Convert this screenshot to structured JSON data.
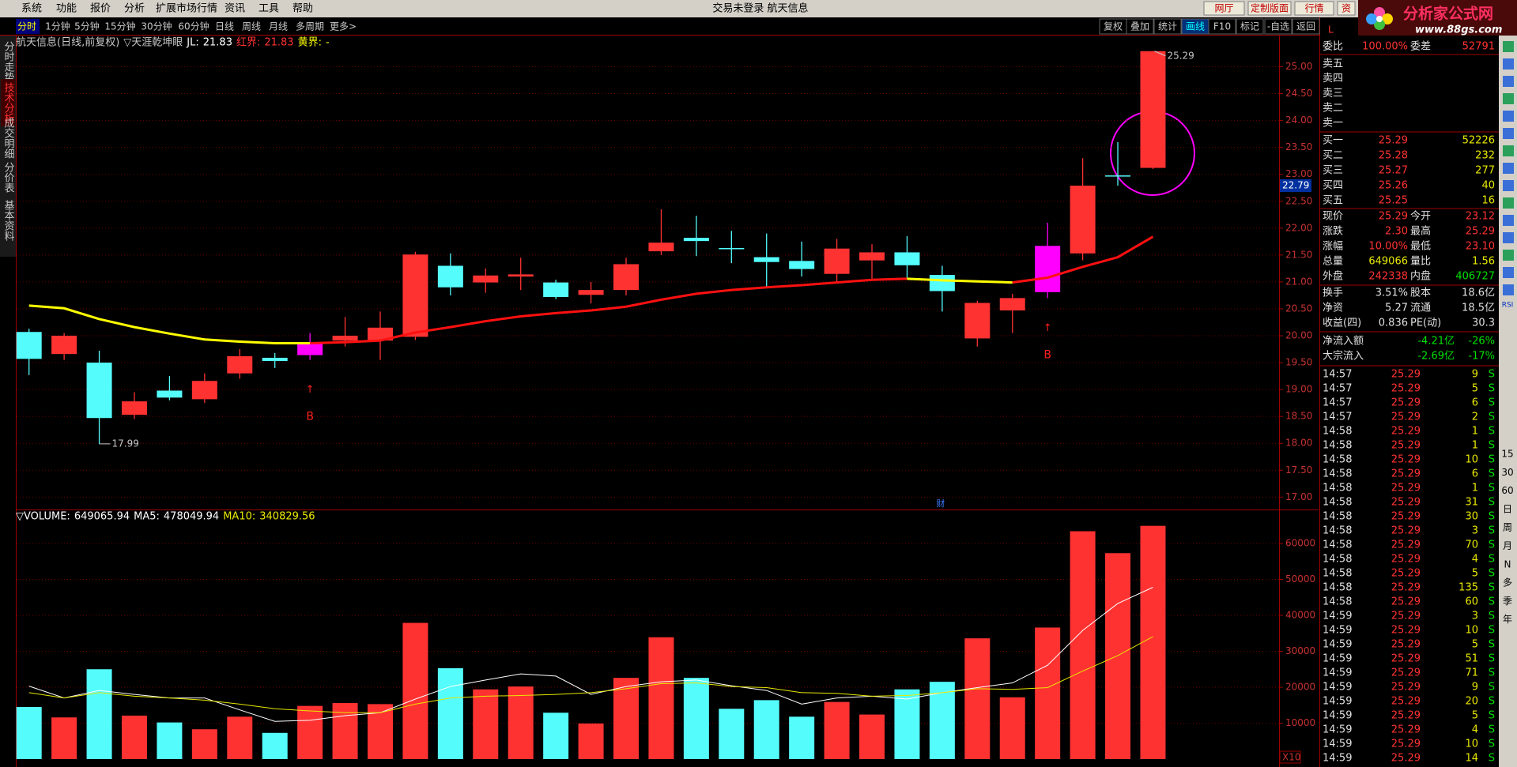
{
  "menu": [
    "系统",
    "功能",
    "报价",
    "分析",
    "扩展市场行情",
    "资讯",
    "工具",
    "帮助"
  ],
  "title": "交易未登录 航天信息",
  "top_buttons": [
    "网厅",
    "定制版面",
    "行情",
    "资"
  ],
  "logo": {
    "name": "分析家公式网",
    "url": "www.88gs.com"
  },
  "periods": [
    "分时",
    "1分钟",
    "5分钟",
    "15分钟",
    "30分钟",
    "60分钟",
    "日线",
    "周线",
    "月线",
    "多周期",
    "更多>"
  ],
  "tools": [
    "复权",
    "叠加",
    "统计",
    "画线",
    "F10",
    "标记",
    "-自选",
    "返回"
  ],
  "side_tabs": [
    "分时走势",
    "技术分析",
    "成交明细",
    "分价表",
    "基本资料"
  ],
  "price_chart": {
    "name": "航天信息(日线,前复权)",
    "indicator": "▽天涯乾坤眼",
    "jl": {
      "label": "JL:",
      "value": 21.83
    },
    "red": {
      "label": "红界:",
      "value": 21.83
    },
    "yellow": {
      "label": "黄界:",
      "value": "-"
    },
    "open": [
      20.07,
      19.66,
      19.5,
      18.53,
      18.98,
      18.82,
      19.3,
      19.59,
      19.64,
      19.91,
      19.91,
      19.98,
      21.3,
      20.99,
      21.1,
      20.99,
      20.76,
      20.85,
      21.57,
      21.82,
      21.63,
      21.46,
      21.39,
      21.15,
      21.4,
      21.55,
      21.13,
      19.95,
      20.47,
      20.81,
      21.53,
      22.98,
      23.12
    ],
    "high": [
      20.13,
      20.05,
      19.72,
      18.95,
      19.25,
      19.3,
      19.75,
      19.68,
      20.05,
      20.35,
      20.45,
      21.56,
      21.53,
      21.25,
      21.45,
      21.04,
      21.0,
      21.45,
      22.35,
      22.23,
      21.95,
      21.9,
      21.75,
      21.8,
      21.7,
      21.85,
      21.3,
      20.65,
      20.78,
      22.1,
      23.3,
      23.6,
      25.29
    ],
    "low": [
      19.27,
      19.55,
      17.99,
      18.45,
      18.8,
      18.75,
      19.2,
      19.4,
      19.55,
      19.8,
      19.55,
      19.92,
      20.75,
      20.8,
      20.85,
      20.68,
      20.6,
      20.75,
      21.5,
      21.48,
      21.35,
      20.9,
      21.1,
      21.0,
      21.05,
      21.05,
      20.45,
      19.8,
      20.05,
      20.7,
      21.4,
      22.79,
      23.1
    ],
    "close": [
      19.57,
      20.0,
      18.47,
      18.78,
      18.85,
      19.16,
      19.62,
      19.53,
      19.86,
      20.0,
      20.15,
      21.51,
      20.9,
      21.12,
      21.14,
      20.72,
      20.85,
      21.33,
      21.73,
      21.76,
      21.62,
      21.37,
      21.24,
      21.62,
      21.55,
      21.31,
      20.83,
      20.61,
      20.7,
      21.67,
      22.79,
      22.98,
      25.29
    ],
    "colors": [
      "#54fcfc",
      "#ff3232",
      "#54fcfc",
      "#ff3232",
      "#54fcfc",
      "#ff3232",
      "#ff3232",
      "#54fcfc",
      "#ff00ff",
      "#ff3232",
      "#ff3232",
      "#ff3232",
      "#54fcfc",
      "#ff3232",
      "#ff3232",
      "#54fcfc",
      "#ff3232",
      "#ff3232",
      "#ff3232",
      "#54fcfc",
      "#54fcfc",
      "#54fcfc",
      "#54fcfc",
      "#ff3232",
      "#ff3232",
      "#54fcfc",
      "#54fcfc",
      "#ff3232",
      "#ff3232",
      "#ff00ff",
      "#ff3232",
      "#54fcfc",
      "#ff3232"
    ],
    "ma": [
      20.56,
      20.51,
      20.31,
      20.16,
      20.04,
      19.93,
      19.89,
      19.86,
      19.86,
      19.88,
      19.91,
      20.06,
      20.16,
      20.27,
      20.36,
      20.42,
      20.47,
      20.54,
      20.67,
      20.78,
      20.85,
      20.9,
      20.94,
      20.99,
      21.04,
      21.06,
      21.03,
      21.01,
      20.99,
      21.08,
      21.28,
      21.46,
      21.84
    ],
    "ma_colors": [
      "#ffff00",
      "#ffff00",
      "#ffff00",
      "#ffff00",
      "#ffff00",
      "#ffff00",
      "#ffff00",
      "#ffff00",
      "#ffff00",
      "#ff1010",
      "#ff1010",
      "#ff1010",
      "#ff1010",
      "#ff1010",
      "#ff1010",
      "#ff1010",
      "#ff1010",
      "#ff1010",
      "#ff1010",
      "#ff1010",
      "#ff1010",
      "#ff1010",
      "#ff1010",
      "#ff1010",
      "#ff1010",
      "#ff1010",
      "#ffff00",
      "#ffff00",
      "#ffff00",
      "#ff1010",
      "#ff1010",
      "#ff1010",
      "#ff1010"
    ],
    "signals": [
      null,
      null,
      null,
      null,
      null,
      null,
      null,
      null,
      "B",
      null,
      null,
      null,
      null,
      null,
      null,
      null,
      null,
      null,
      null,
      null,
      null,
      null,
      null,
      null,
      null,
      null,
      null,
      null,
      null,
      "B",
      null,
      null,
      null
    ],
    "events": [
      null,
      null,
      null,
      null,
      null,
      null,
      null,
      null,
      null,
      null,
      null,
      null,
      null,
      null,
      null,
      null,
      null,
      null,
      null,
      null,
      null,
      null,
      null,
      null,
      null,
      null,
      "财",
      null,
      null,
      null,
      null,
      null,
      null
    ],
    "high_label": "25.29",
    "low_label": "17.99",
    "marker": 22.79,
    "ylim": [
      16.77,
      25.58
    ],
    "yticks": [
      {
        "value": 17,
        "label": "17.00"
      },
      {
        "value": 17.5,
        "label": "17.50"
      },
      {
        "value": 18,
        "label": "18.00"
      },
      {
        "value": 18.5,
        "label": "18.50"
      },
      {
        "value": 19,
        "label": "19.00"
      },
      {
        "value": 19.5,
        "label": "19.50"
      },
      {
        "value": 20,
        "label": "20.00"
      },
      {
        "value": 20.5,
        "label": "20.50"
      },
      {
        "value": 21,
        "label": "21.00"
      },
      {
        "value": 21.5,
        "label": "21.50"
      },
      {
        "value": 22,
        "label": "22.00"
      },
      {
        "value": 22.5,
        "label": "22.50"
      },
      {
        "value": 23,
        "label": "23.00"
      },
      {
        "value": 23.5,
        "label": "23.50"
      },
      {
        "value": 24,
        "label": "24.00"
      },
      {
        "value": 24.5,
        "label": "24.50"
      },
      {
        "value": 25,
        "label": "25.00"
      }
    ],
    "grid": true
  },
  "volume_chart": {
    "volume": {
      "label": "▽VOLUME:",
      "value": 649065.94
    },
    "ma5": {
      "label": "MA5:",
      "value": 478049.94
    },
    "ma10": {
      "label": "MA10:",
      "value": 340829.56
    },
    "values": [
      14500,
      11600,
      25000,
      12100,
      10200,
      8300,
      11800,
      7300,
      14800,
      15600,
      15300,
      37900,
      25300,
      19400,
      20200,
      12900,
      9900,
      22600,
      33900,
      22600,
      14000,
      16400,
      11800,
      15900,
      12400,
      19400,
      21500,
      33600,
      17200,
      36600,
      63400,
      57300,
      64907
    ],
    "colors": [
      "#54fcfc",
      "#ff3232",
      "#54fcfc",
      "#ff3232",
      "#54fcfc",
      "#ff3232",
      "#ff3232",
      "#54fcfc",
      "#ff3232",
      "#ff3232",
      "#ff3232",
      "#ff3232",
      "#54fcfc",
      "#ff3232",
      "#ff3232",
      "#54fcfc",
      "#ff3232",
      "#ff3232",
      "#ff3232",
      "#54fcfc",
      "#54fcfc",
      "#54fcfc",
      "#54fcfc",
      "#ff3232",
      "#ff3232",
      "#54fcfc",
      "#54fcfc",
      "#ff3232",
      "#ff3232",
      "#ff3232",
      "#ff3232",
      "#ff3232",
      "#ff3232"
    ],
    "ma5_values": [
      20300,
      17000,
      19100,
      18000,
      17000,
      17000,
      13700,
      10500,
      10800,
      12100,
      12900,
      16700,
      20200,
      22000,
      23700,
      23100,
      18000,
      20200,
      21500,
      22000,
      20400,
      19100,
      15300,
      17000,
      17500,
      16700,
      18500,
      19900,
      21200,
      26100,
      35800,
      43300,
      47805
    ],
    "ma10_values": [
      18500,
      17000,
      18500,
      17500,
      17000,
      16400,
      15300,
      14000,
      13400,
      12900,
      12900,
      15300,
      17000,
      17500,
      17700,
      18000,
      18500,
      19600,
      21000,
      21200,
      20200,
      19900,
      18500,
      18300,
      17500,
      17700,
      18500,
      19600,
      19400,
      19900,
      24500,
      28800,
      34083
    ],
    "ma5_color": "#ffffff",
    "ma10_color": "#e8e800",
    "scale": "X10",
    "ylim": [
      0,
      69450
    ],
    "yticks": [
      10000,
      20000,
      30000,
      40000,
      50000,
      60000
    ],
    "grid": true
  },
  "quote": {
    "corner": "L",
    "ratio": {
      "label": "委比",
      "value": "100.00%",
      "label2": "委差",
      "value2": 52791
    },
    "sell": [
      "卖五",
      "卖四",
      "卖三",
      "卖二",
      "卖一"
    ],
    "buy": [
      {
        "label": "买一",
        "price": 25.29,
        "volume": 52226
      },
      {
        "label": "买二",
        "price": 25.28,
        "volume": 232
      },
      {
        "label": "买三",
        "price": 25.27,
        "volume": 277
      },
      {
        "label": "买四",
        "price": 25.26,
        "volume": 40
      },
      {
        "label": "买五",
        "price": 25.25,
        "volume": 16
      }
    ],
    "stats": [
      {
        "label": "现价",
        "value": "25.29",
        "color": "#ff3232",
        "label2": "今开",
        "value2": "23.12",
        "color2": "#ff3232"
      },
      {
        "label": "涨跌",
        "value": "2.30",
        "color": "#ff3232",
        "label2": "最高",
        "value2": "25.29",
        "color2": "#ff3232"
      },
      {
        "label": "涨幅",
        "value": "10.00%",
        "color": "#ff3232",
        "label2": "最低",
        "value2": "23.10",
        "color2": "#ff3232"
      },
      {
        "label": "总量",
        "value": "649066",
        "color": "#e8e800",
        "label2": "量比",
        "value2": "1.56",
        "color2": "#e8e800"
      },
      {
        "label": "外盘",
        "value": "242338",
        "color": "#ff3232",
        "label2": "内盘",
        "value2": "406727",
        "color2": "#00e000"
      },
      {
        "label": "换手",
        "value": "3.51%",
        "color": "#e0e0e0",
        "label2": "股本",
        "value2": "18.6亿",
        "color2": "#e0e0e0"
      },
      {
        "label": "净资",
        "value": "5.27",
        "color": "#e0e0e0",
        "label2": "流通",
        "value2": "18.5亿",
        "color2": "#e0e0e0"
      },
      {
        "label": "收益(四)",
        "value": "0.836",
        "color": "#e0e0e0",
        "label2": "PE(动)",
        "value2": "30.3",
        "color2": "#e0e0e0"
      }
    ],
    "flows": [
      {
        "label": "净流入额",
        "value": "-4.21亿",
        "pct": "-26%"
      },
      {
        "label": "大宗流入",
        "value": "-2.69亿",
        "pct": "-17%"
      }
    ]
  },
  "ticks": [
    {
      "time": "14:57",
      "price": 25.29,
      "volume": 9,
      "side": "S"
    },
    {
      "time": "14:57",
      "price": 25.29,
      "volume": 5,
      "side": "S"
    },
    {
      "time": "14:57",
      "price": 25.29,
      "volume": 6,
      "side": "S"
    },
    {
      "time": "14:57",
      "price": 25.29,
      "volume": 2,
      "side": "S"
    },
    {
      "time": "14:58",
      "price": 25.29,
      "volume": 1,
      "side": "S"
    },
    {
      "time": "14:58",
      "price": 25.29,
      "volume": 1,
      "side": "S"
    },
    {
      "time": "14:58",
      "price": 25.29,
      "volume": 10,
      "side": "S"
    },
    {
      "time": "14:58",
      "price": 25.29,
      "volume": 6,
      "side": "S"
    },
    {
      "time": "14:58",
      "price": 25.29,
      "volume": 1,
      "side": "S"
    },
    {
      "time": "14:58",
      "price": 25.29,
      "volume": 31,
      "side": "S"
    },
    {
      "time": "14:58",
      "price": 25.29,
      "volume": 30,
      "side": "S"
    },
    {
      "time": "14:58",
      "price": 25.29,
      "volume": 3,
      "side": "S"
    },
    {
      "time": "14:58",
      "price": 25.29,
      "volume": 70,
      "side": "S"
    },
    {
      "time": "14:58",
      "price": 25.29,
      "volume": 4,
      "side": "S"
    },
    {
      "time": "14:58",
      "price": 25.29,
      "volume": 5,
      "side": "S"
    },
    {
      "time": "14:58",
      "price": 25.29,
      "volume": 135,
      "side": "S"
    },
    {
      "time": "14:58",
      "price": 25.29,
      "volume": 60,
      "side": "S"
    },
    {
      "time": "14:59",
      "price": 25.29,
      "volume": 3,
      "side": "S"
    },
    {
      "time": "14:59",
      "price": 25.29,
      "volume": 10,
      "side": "S"
    },
    {
      "time": "14:59",
      "price": 25.29,
      "volume": 5,
      "side": "S"
    },
    {
      "time": "14:59",
      "price": 25.29,
      "volume": 51,
      "side": "S"
    },
    {
      "time": "14:59",
      "price": 25.29,
      "volume": 71,
      "side": "S"
    },
    {
      "time": "14:59",
      "price": 25.29,
      "volume": 9,
      "side": "S"
    },
    {
      "time": "14:59",
      "price": 25.29,
      "volume": 20,
      "side": "S"
    },
    {
      "time": "14:59",
      "price": 25.29,
      "volume": 5,
      "side": "S"
    },
    {
      "time": "14:59",
      "price": 25.29,
      "volume": 4,
      "side": "S"
    },
    {
      "time": "14:59",
      "price": 25.29,
      "volume": 10,
      "side": "S"
    },
    {
      "time": "14:59",
      "price": 25.29,
      "volume": 14,
      "side": "S"
    }
  ],
  "toolbar": {
    "rsi": "RSI",
    "periods": [
      "15",
      "30",
      "60",
      "日",
      "周",
      "月",
      "N",
      "多",
      "季",
      "年"
    ]
  }
}
